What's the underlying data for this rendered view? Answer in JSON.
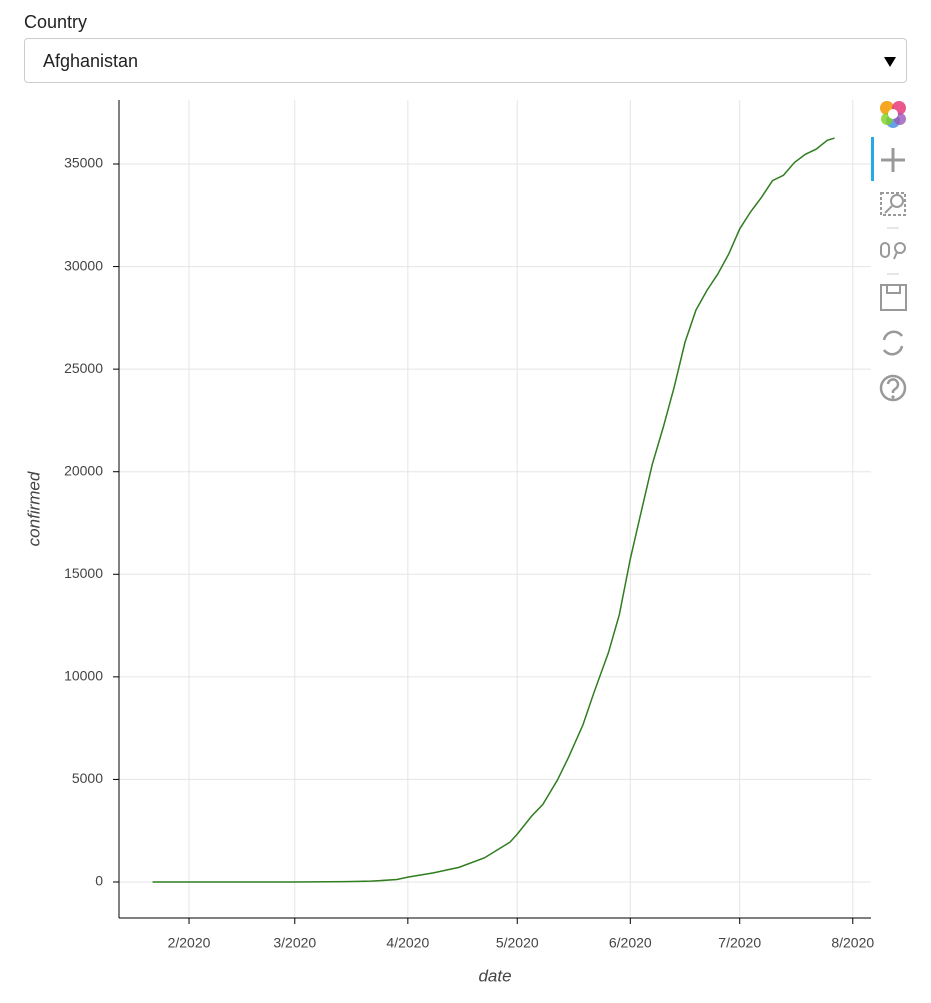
{
  "widget": {
    "label": "Country",
    "selected": "Afghanistan"
  },
  "chart_data": {
    "type": "line",
    "x_label": "date",
    "y_label": "confirmed",
    "x": [
      21,
      54,
      60,
      74,
      81,
      88,
      91,
      98,
      105,
      112,
      119,
      121,
      125,
      128,
      132,
      135,
      139,
      142,
      146,
      149,
      152,
      155,
      158,
      161,
      164,
      167,
      170,
      173,
      176,
      179,
      182,
      185,
      188,
      191,
      194,
      197,
      200,
      203,
      206,
      208
    ],
    "series": [
      {
        "name": "confirmed",
        "color": "#2f7d1f",
        "values": [
          0,
          1,
          1,
          16,
          40,
          120,
          237,
          444,
          714,
          1176,
          1939,
          2335,
          3224,
          3778,
          4963,
          6053,
          7653,
          9216,
          11180,
          13036,
          15750,
          18054,
          20342,
          22142,
          24102,
          26310,
          27878,
          28833,
          29640,
          30616,
          31836,
          32672,
          33384,
          34194,
          34451,
          35070,
          35475,
          35727,
          36157,
          36263
        ]
      }
    ],
    "xlim": [
      11.8,
      218
    ],
    "ylim": [
      -1755,
      38120
    ],
    "xticks": [
      {
        "value": 31,
        "label": "2/2020"
      },
      {
        "value": 60,
        "label": "3/2020"
      },
      {
        "value": 91,
        "label": "4/2020"
      },
      {
        "value": 121,
        "label": "5/2020"
      },
      {
        "value": 152,
        "label": "6/2020"
      },
      {
        "value": 182,
        "label": "7/2020"
      },
      {
        "value": 213,
        "label": "8/2020"
      }
    ],
    "yticks": [
      0,
      5000,
      10000,
      15000,
      20000,
      25000,
      30000,
      35000
    ],
    "grid": true
  }
}
